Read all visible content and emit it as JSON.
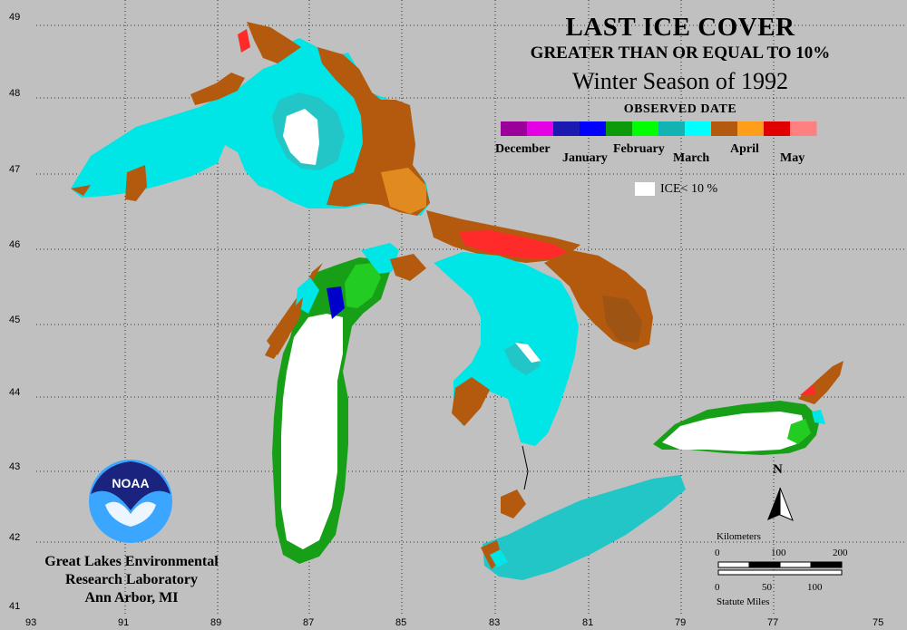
{
  "titles": {
    "line1": "LAST ICE COVER",
    "line2": "GREATER THAN OR EQUAL TO 10%",
    "line3": "Winter Season of 1992",
    "legend_heading": "OBSERVED DATE"
  },
  "legend": {
    "months": [
      "December",
      "January",
      "February",
      "March",
      "April",
      "May"
    ],
    "colors": [
      "#9b009b",
      "#e600e6",
      "#1a1ab0",
      "#0000ff",
      "#0a9a0a",
      "#00ff00",
      "#13b3b3",
      "#00ffff",
      "#b35a0f",
      "#ff9e1a",
      "#e00000",
      "#ff8080"
    ],
    "ice_label": "ICE< 10 %",
    "ice_color": "#ffffff"
  },
  "axes": {
    "lat_labels": [
      "49",
      "48",
      "47",
      "46",
      "45",
      "44",
      "43",
      "42",
      "41"
    ],
    "lon_labels": [
      "93",
      "91",
      "89",
      "87",
      "85",
      "83",
      "81",
      "79",
      "77",
      "75"
    ]
  },
  "scale": {
    "km_title": "Kilometers",
    "km_ticks": [
      "0",
      "100",
      "200"
    ],
    "mi_ticks": [
      "0",
      "50",
      "100"
    ],
    "mi_title": "Statute Miles"
  },
  "north": "N",
  "logo": {
    "text": "NOAA"
  },
  "lab": {
    "line1": "Great Lakes Environmental",
    "line2": "Research Laboratory",
    "line3": "Ann Arbor, MI"
  },
  "colors": {
    "background": "#c0c0c0",
    "march": "#00e5e5",
    "march_dark": "#22c6c6",
    "april": "#b35a0f",
    "april_light": "#e08a20",
    "may": "#ff2a2a",
    "february": "#17a017",
    "february_light": "#22cc22",
    "january": "#0000cc",
    "ice_free": "#ffffff"
  }
}
